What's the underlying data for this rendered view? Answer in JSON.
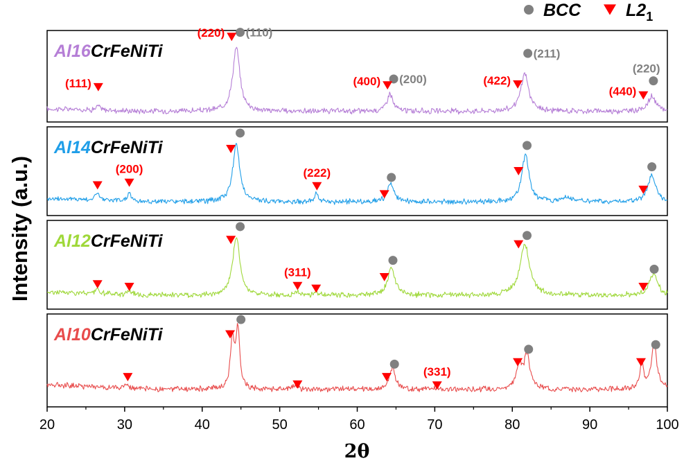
{
  "chart_data": {
    "type": "line",
    "xlabel": "2θ",
    "ylabel": "Intensity (a.u.)",
    "xlim": [
      20,
      100
    ],
    "x_ticks": [
      20,
      30,
      40,
      50,
      60,
      70,
      80,
      90,
      100
    ],
    "legend": {
      "placement": "top-right",
      "items": [
        {
          "marker": "circle",
          "label": "BCC",
          "color": "#808080"
        },
        {
          "marker": "triangle-down",
          "label": "L2",
          "subscript": "1",
          "color": "#ff0000"
        }
      ]
    },
    "panels": [
      {
        "name_prefix": "Al16",
        "name_suffix": "CrFeNiTi",
        "color": "#b57ed6",
        "baseline": 0.08,
        "peaks": [
          {
            "x": 26.6,
            "h": 0.05,
            "w": 0.3
          },
          {
            "x": 44.4,
            "h": 0.78,
            "w": 0.55
          },
          {
            "x": 64.2,
            "h": 0.22,
            "w": 0.45
          },
          {
            "x": 81.6,
            "h": 0.46,
            "w": 0.6
          },
          {
            "x": 98.0,
            "h": 0.18,
            "w": 0.6
          }
        ],
        "bcc_markers": [
          {
            "x": 44.9,
            "y": 0.98,
            "label": "(110)"
          },
          {
            "x": 64.7,
            "y": 0.47,
            "label": "(200)"
          },
          {
            "x": 82.0,
            "y": 0.75,
            "label": "(211)"
          },
          {
            "x": 98.2,
            "y": 0.45,
            "label": "(220)"
          }
        ],
        "l21_markers": [
          {
            "x": 26.6,
            "y": 0.38,
            "label": "(111)"
          },
          {
            "x": 43.8,
            "y": 0.93,
            "label": "(220)"
          },
          {
            "x": 63.9,
            "y": 0.4,
            "label": "(400)"
          },
          {
            "x": 80.7,
            "y": 0.41,
            "label": "(422)"
          },
          {
            "x": 96.9,
            "y": 0.29,
            "label": "(440)"
          }
        ]
      },
      {
        "name_prefix": "Al14",
        "name_suffix": "CrFeNiTi",
        "color": "#1f9ee8",
        "baseline": 0.12,
        "peaks": [
          {
            "x": 26.5,
            "h": 0.1,
            "w": 0.3
          },
          {
            "x": 30.6,
            "h": 0.1,
            "w": 0.35
          },
          {
            "x": 44.4,
            "h": 0.72,
            "w": 0.55
          },
          {
            "x": 54.7,
            "h": 0.13,
            "w": 0.2
          },
          {
            "x": 64.3,
            "h": 0.22,
            "w": 0.5
          },
          {
            "x": 81.7,
            "h": 0.6,
            "w": 0.55
          },
          {
            "x": 87.0,
            "h": 0.06,
            "w": 0.9
          },
          {
            "x": 98.0,
            "h": 0.34,
            "w": 0.6
          }
        ],
        "bcc_markers": [
          {
            "x": 44.9,
            "y": 0.93,
            "label": ""
          },
          {
            "x": 64.4,
            "y": 0.43,
            "label": ""
          },
          {
            "x": 81.9,
            "y": 0.79,
            "label": ""
          },
          {
            "x": 98.0,
            "y": 0.55,
            "label": ""
          }
        ],
        "l21_markers": [
          {
            "x": 26.5,
            "y": 0.34,
            "label": ""
          },
          {
            "x": 30.6,
            "y": 0.37,
            "label": "(200)"
          },
          {
            "x": 43.7,
            "y": 0.75,
            "label": ""
          },
          {
            "x": 54.8,
            "y": 0.33,
            "label": "(222)"
          },
          {
            "x": 63.5,
            "y": 0.24,
            "label": ""
          },
          {
            "x": 80.8,
            "y": 0.5,
            "label": ""
          },
          {
            "x": 96.9,
            "y": 0.29,
            "label": ""
          }
        ]
      },
      {
        "name_prefix": "Al12",
        "name_suffix": "CrFeNiTi",
        "color": "#9fd83a",
        "baseline": 0.12,
        "peaks": [
          {
            "x": 26.5,
            "h": 0.06,
            "w": 0.3
          },
          {
            "x": 30.6,
            "h": 0.06,
            "w": 0.35
          },
          {
            "x": 44.4,
            "h": 0.75,
            "w": 0.55
          },
          {
            "x": 52.2,
            "h": 0.05,
            "w": 0.3
          },
          {
            "x": 54.7,
            "h": 0.05,
            "w": 0.3
          },
          {
            "x": 64.4,
            "h": 0.35,
            "w": 0.55
          },
          {
            "x": 81.6,
            "h": 0.65,
            "w": 0.75
          },
          {
            "x": 98.2,
            "h": 0.28,
            "w": 0.6
          }
        ],
        "bcc_markers": [
          {
            "x": 44.9,
            "y": 0.93,
            "label": ""
          },
          {
            "x": 64.6,
            "y": 0.55,
            "label": ""
          },
          {
            "x": 81.9,
            "y": 0.83,
            "label": ""
          },
          {
            "x": 98.3,
            "y": 0.45,
            "label": ""
          }
        ],
        "l21_markers": [
          {
            "x": 26.5,
            "y": 0.28,
            "label": ""
          },
          {
            "x": 30.6,
            "y": 0.25,
            "label": ""
          },
          {
            "x": 43.7,
            "y": 0.78,
            "label": ""
          },
          {
            "x": 52.3,
            "y": 0.26,
            "label": "(311)"
          },
          {
            "x": 54.7,
            "y": 0.23,
            "label": ""
          },
          {
            "x": 63.5,
            "y": 0.36,
            "label": ""
          },
          {
            "x": 80.8,
            "y": 0.73,
            "label": ""
          },
          {
            "x": 96.9,
            "y": 0.25,
            "label": ""
          }
        ]
      },
      {
        "name_prefix": "Al10",
        "name_suffix": "CrFeNiTi",
        "color": "#e84c4c",
        "baseline": 0.16,
        "peaks": [
          {
            "x": 30.3,
            "h": 0.05,
            "w": 0.35
          },
          {
            "x": 43.9,
            "h": 0.6,
            "w": 0.3
          },
          {
            "x": 44.6,
            "h": 0.7,
            "w": 0.3
          },
          {
            "x": 52.0,
            "h": 0.05,
            "w": 0.3
          },
          {
            "x": 64.5,
            "h": 0.26,
            "w": 0.45
          },
          {
            "x": 70.2,
            "h": 0.02,
            "w": 0.3
          },
          {
            "x": 80.9,
            "h": 0.28,
            "w": 0.45
          },
          {
            "x": 81.9,
            "h": 0.4,
            "w": 0.45
          },
          {
            "x": 96.7,
            "h": 0.3,
            "w": 0.3
          },
          {
            "x": 98.3,
            "h": 0.55,
            "w": 0.4
          }
        ],
        "bcc_markers": [
          {
            "x": 45.0,
            "y": 0.94,
            "label": ""
          },
          {
            "x": 64.8,
            "y": 0.46,
            "label": ""
          },
          {
            "x": 82.1,
            "y": 0.62,
            "label": ""
          },
          {
            "x": 98.5,
            "y": 0.67,
            "label": ""
          }
        ],
        "l21_markers": [
          {
            "x": 30.4,
            "y": 0.32,
            "label": ""
          },
          {
            "x": 43.6,
            "y": 0.78,
            "label": ""
          },
          {
            "x": 52.3,
            "y": 0.24,
            "label": ""
          },
          {
            "x": 63.8,
            "y": 0.32,
            "label": ""
          },
          {
            "x": 70.3,
            "y": 0.23,
            "label": "(331)"
          },
          {
            "x": 80.7,
            "y": 0.48,
            "label": ""
          },
          {
            "x": 96.6,
            "y": 0.48,
            "label": ""
          }
        ]
      }
    ]
  }
}
